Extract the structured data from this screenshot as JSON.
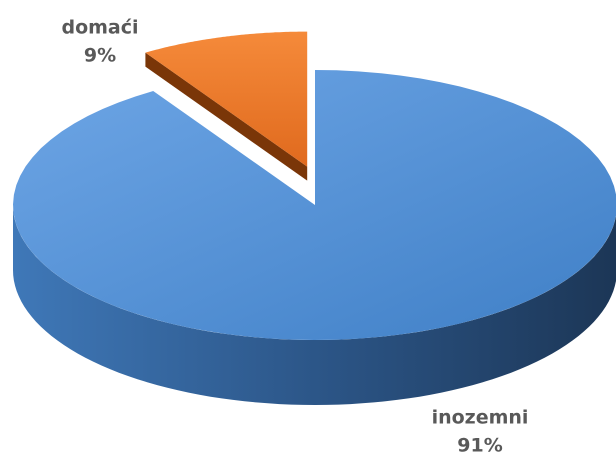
{
  "chart_data": {
    "type": "pie",
    "categories": [
      "inozemni",
      "domaći"
    ],
    "values": [
      91,
      9
    ],
    "value_labels": [
      "91%",
      "9%"
    ],
    "colors": [
      "#4f8fd6",
      "#ed7d31"
    ],
    "explode": [
      false,
      true
    ]
  }
}
